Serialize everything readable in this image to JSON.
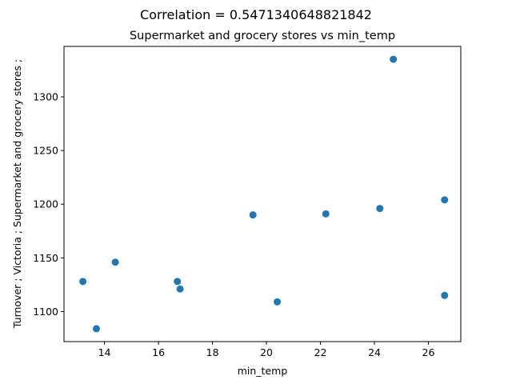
{
  "chart_data": {
    "type": "scatter",
    "suptitle": "Correlation = 0.5471340648821842",
    "title": "Supermarket and grocery stores vs min_temp",
    "xlabel": "min_temp",
    "ylabel": "Turnover ;  Victoria ;  Supermarket and grocery stores ;",
    "xlim": [
      12.5,
      27.2
    ],
    "ylim": [
      1072,
      1347
    ],
    "xticks": [
      14,
      16,
      18,
      20,
      22,
      24,
      26
    ],
    "yticks": [
      1100,
      1150,
      1200,
      1250,
      1300
    ],
    "xtick_labels": [
      "14",
      "16",
      "18",
      "20",
      "22",
      "24",
      "26"
    ],
    "ytick_labels": [
      "1100",
      "1150",
      "1200",
      "1250",
      "1300"
    ],
    "marker_color": "#1f77b4",
    "points": [
      {
        "x": 13.2,
        "y": 1128
      },
      {
        "x": 13.7,
        "y": 1084
      },
      {
        "x": 14.4,
        "y": 1146
      },
      {
        "x": 16.7,
        "y": 1128
      },
      {
        "x": 16.8,
        "y": 1121
      },
      {
        "x": 19.5,
        "y": 1190
      },
      {
        "x": 20.4,
        "y": 1109
      },
      {
        "x": 22.2,
        "y": 1191
      },
      {
        "x": 24.2,
        "y": 1196
      },
      {
        "x": 24.7,
        "y": 1335
      },
      {
        "x": 26.6,
        "y": 1204
      },
      {
        "x": 26.6,
        "y": 1115
      }
    ]
  }
}
